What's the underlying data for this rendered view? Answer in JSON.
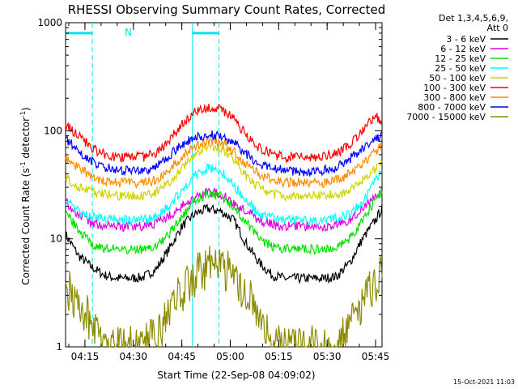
{
  "chart_data": {
    "type": "line",
    "title": "RHESSI Observing Summary Count Rates, Corrected",
    "xlabel": "Start Time (22-Sep-08 04:09:02)",
    "ylabel_main": "Corrected Count Rate (s",
    "ylabel_sup1": "-1",
    "ylabel_mid": " detector",
    "ylabel_sup2": "-1",
    "ylabel_end": ")",
    "y_scale": "log",
    "ylim": [
      1,
      1000
    ],
    "xlim_minutes": [
      0,
      98
    ],
    "x_ticks": [
      {
        "label": "04:15",
        "minute": 6
      },
      {
        "label": "04:30",
        "minute": 21
      },
      {
        "label": "04:45",
        "minute": 36
      },
      {
        "label": "05:00",
        "minute": 51
      },
      {
        "label": "05:15",
        "minute": 66
      },
      {
        "label": "05:30",
        "minute": 81
      },
      {
        "label": "05:45",
        "minute": 96
      }
    ],
    "y_ticks": [
      {
        "label": "1",
        "value": 1
      },
      {
        "label": "10",
        "value": 10
      },
      {
        "label": "100",
        "value": 100
      },
      {
        "label": "1000",
        "value": 1000
      }
    ],
    "legend_header": [
      "Det 1,3,4,5,6,9,",
      "Att 0"
    ],
    "legend_placement": "right",
    "flag_label": "N",
    "flag_bars": [
      [
        0,
        8.3
      ],
      [
        39.3,
        47.5
      ]
    ],
    "flag_color": "#00e5e5",
    "vertical_lines": [
      {
        "minute": 8.3,
        "style": "dashed"
      },
      {
        "minute": 39.3,
        "style": "solid"
      },
      {
        "minute": 47.5,
        "style": "dashed"
      }
    ],
    "footer_stamp": "15-Oct-2021 11:03",
    "x_minutes": [
      0,
      4,
      8,
      12,
      16,
      20,
      24,
      28,
      32,
      36,
      40,
      44,
      48,
      52,
      56,
      60,
      64,
      68,
      72,
      76,
      80,
      84,
      88,
      92,
      96,
      98
    ],
    "series": [
      {
        "name": "3 - 6 keV",
        "color": "#000000",
        "values": [
          11,
          7,
          5.5,
          4.6,
          4.3,
          4.3,
          4.4,
          5.2,
          8,
          13,
          17,
          19,
          18,
          15,
          9,
          6,
          4.6,
          4.3,
          4.3,
          4.3,
          4.3,
          4.5,
          6,
          10,
          15,
          19
        ]
      },
      {
        "name": "6 - 12 keV",
        "color": "#e100e1",
        "values": [
          22,
          17,
          14,
          13,
          13,
          13,
          13,
          14,
          16,
          20,
          24,
          27,
          26,
          22,
          18,
          15,
          13.5,
          13,
          13,
          13,
          13,
          13.5,
          15,
          19,
          25,
          28
        ]
      },
      {
        "name": "12 - 25 keV",
        "color": "#00e100",
        "values": [
          18,
          12,
          9,
          8.2,
          8,
          8,
          8,
          8.5,
          11,
          16,
          22,
          26,
          25,
          20,
          14,
          10,
          8.5,
          8,
          8,
          8,
          8,
          8.5,
          10,
          15,
          23,
          28
        ]
      },
      {
        "name": "25 - 50 keV",
        "color": "#00ffff",
        "values": [
          23,
          18,
          16,
          15.5,
          15,
          15,
          15,
          16,
          20,
          28,
          38,
          45,
          42,
          32,
          22,
          17,
          15.5,
          15,
          15,
          15,
          15,
          15.5,
          17,
          22,
          35,
          42
        ]
      },
      {
        "name": "50 - 100 keV",
        "color": "#d2d200",
        "values": [
          37,
          30,
          27,
          26,
          25,
          25,
          25,
          27,
          33,
          45,
          60,
          72,
          70,
          55,
          38,
          30,
          26,
          25,
          25,
          25,
          25,
          26,
          28,
          34,
          45,
          55
        ]
      },
      {
        "name": "100 - 300 keV",
        "color": "#ff0000",
        "values": [
          115,
          90,
          70,
          60,
          57,
          57,
          57,
          62,
          80,
          115,
          150,
          165,
          160,
          130,
          90,
          70,
          60,
          57,
          57,
          57,
          58,
          62,
          75,
          100,
          140,
          120
        ]
      },
      {
        "name": "300 - 800 keV",
        "color": "#ff8c00",
        "values": [
          55,
          45,
          38,
          34,
          33,
          33,
          33,
          35,
          43,
          58,
          72,
          80,
          78,
          65,
          48,
          40,
          35,
          33,
          33,
          33,
          33,
          35,
          40,
          50,
          65,
          72
        ]
      },
      {
        "name": "800 - 7000 keV",
        "color": "#0000ff",
        "values": [
          85,
          65,
          52,
          46,
          44,
          43,
          43,
          46,
          58,
          75,
          86,
          92,
          90,
          78,
          60,
          50,
          45,
          43,
          42,
          42,
          43,
          46,
          55,
          68,
          85,
          90
        ]
      },
      {
        "name": "7000 - 15000 keV",
        "color": "#8c8c00",
        "values": [
          3.6,
          2.6,
          1.7,
          1,
          1,
          1,
          1,
          1.3,
          2,
          3.2,
          4.5,
          5.5,
          5.6,
          4.5,
          3,
          2,
          1.2,
          1,
          1,
          1,
          1,
          1,
          1.8,
          2.6,
          3.8,
          4.8
        ]
      }
    ]
  }
}
